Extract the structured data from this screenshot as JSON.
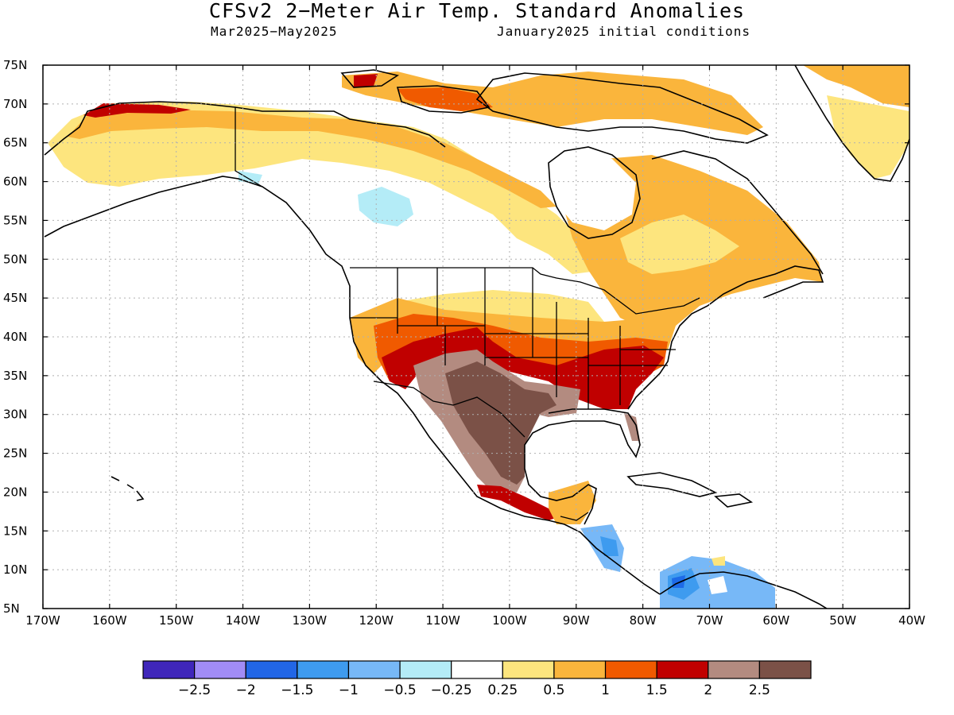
{
  "title": "CFSv2 2−Meter Air Temp. Standard Anomalies",
  "subtitle_left": "Mar2025−May2025",
  "subtitle_right": "January2025 initial conditions",
  "map": {
    "lon_range": [
      -170,
      -40
    ],
    "lat_range": [
      5,
      75
    ],
    "lat_ticks": [
      "5N",
      "10N",
      "15N",
      "20N",
      "25N",
      "30N",
      "35N",
      "40N",
      "45N",
      "50N",
      "55N",
      "60N",
      "65N",
      "70N",
      "75N"
    ],
    "lon_ticks": [
      "170W",
      "160W",
      "150W",
      "140W",
      "130W",
      "120W",
      "110W",
      "100W",
      "90W",
      "80W",
      "70W",
      "60W",
      "50W",
      "40W"
    ],
    "grid": "dotted",
    "colors": {
      "brown_dark": "#7b5147",
      "brown_light": "#b38b80",
      "red": "#c00000",
      "orange_red": "#f05a00",
      "orange": "#fab53c",
      "yellow": "#fde57e",
      "light_blue": "#b4ecf7",
      "blue_med": "#77b8f7",
      "blue": "#3e9bef",
      "blue_dark": "#1e6be7"
    }
  },
  "colorbar": {
    "colors": [
      "#3f26ba",
      "#a18cf6",
      "#2266e6",
      "#3e9bef",
      "#77b8f7",
      "#b4ecf7",
      "#ffffff",
      "#fde57e",
      "#fab53c",
      "#f05a00",
      "#c00000",
      "#b38b80",
      "#7b5147"
    ],
    "labels": [
      "−2.5",
      "−2",
      "−1.5",
      "−1",
      "−0.5",
      "−0.25",
      "0.25",
      "0.5",
      "1",
      "1.5",
      "2",
      "2.5"
    ]
  }
}
